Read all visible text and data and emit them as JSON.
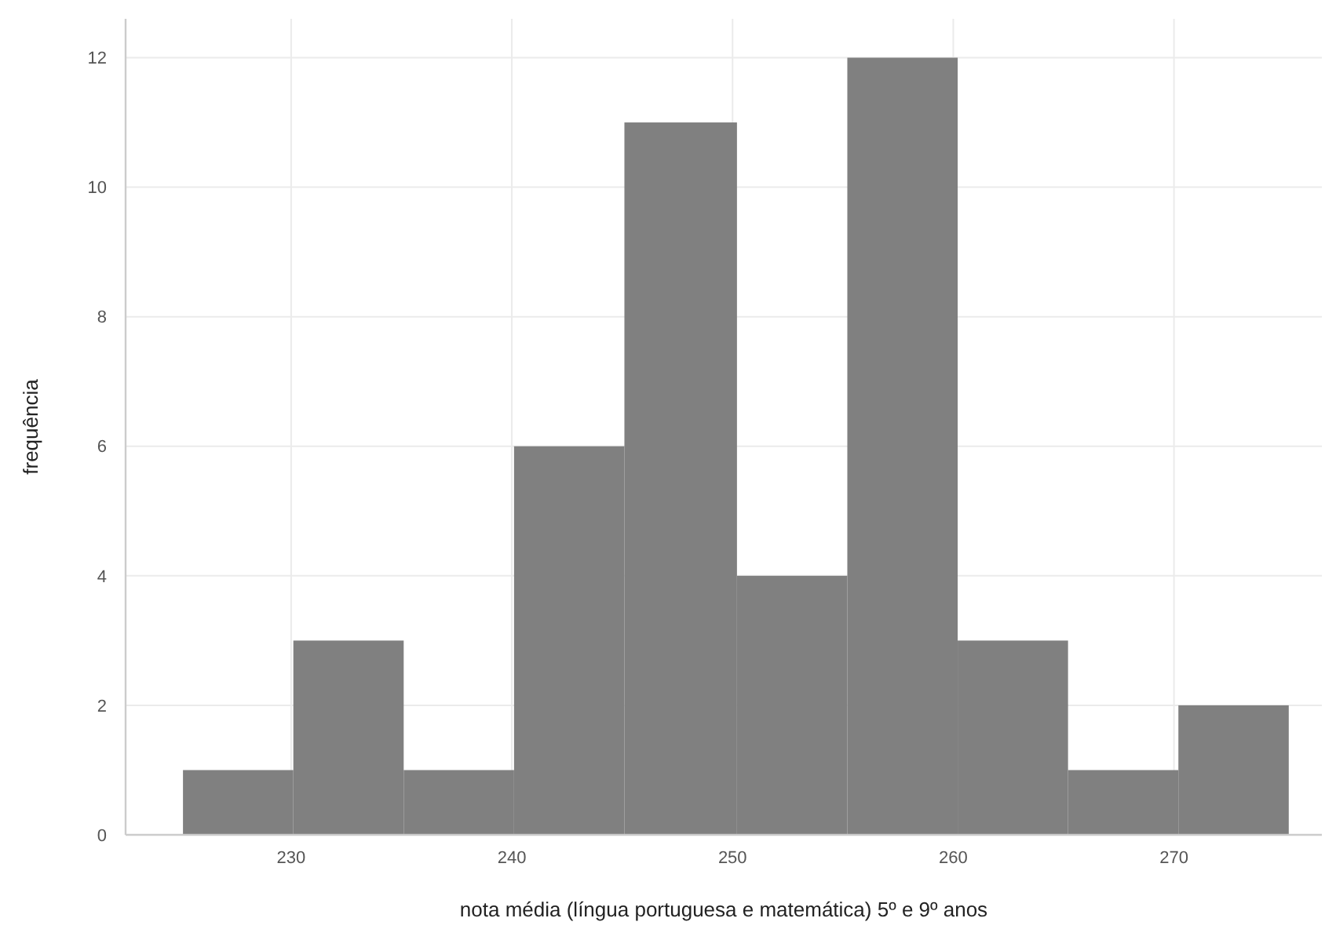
{
  "chart_data": {
    "type": "histogram",
    "xlabel": "nota média (língua portuguesa e matemática) 5º e 9º anos",
    "ylabel": "frequência",
    "bins": [
      225.1,
      230.1,
      235.1,
      240.1,
      245.1,
      250.2,
      255.2,
      260.2,
      265.2,
      270.2,
      275.2
    ],
    "values": [
      1,
      3,
      1,
      6,
      11,
      4,
      12,
      3,
      1,
      2
    ],
    "color": "#808080",
    "xlim": [
      222.5,
      276.7
    ],
    "xticks": [
      230,
      240,
      250,
      260,
      270
    ],
    "ylim": [
      0,
      12.6
    ],
    "yticks": [
      0,
      2,
      4,
      6,
      8,
      10,
      12
    ],
    "grid": true
  }
}
